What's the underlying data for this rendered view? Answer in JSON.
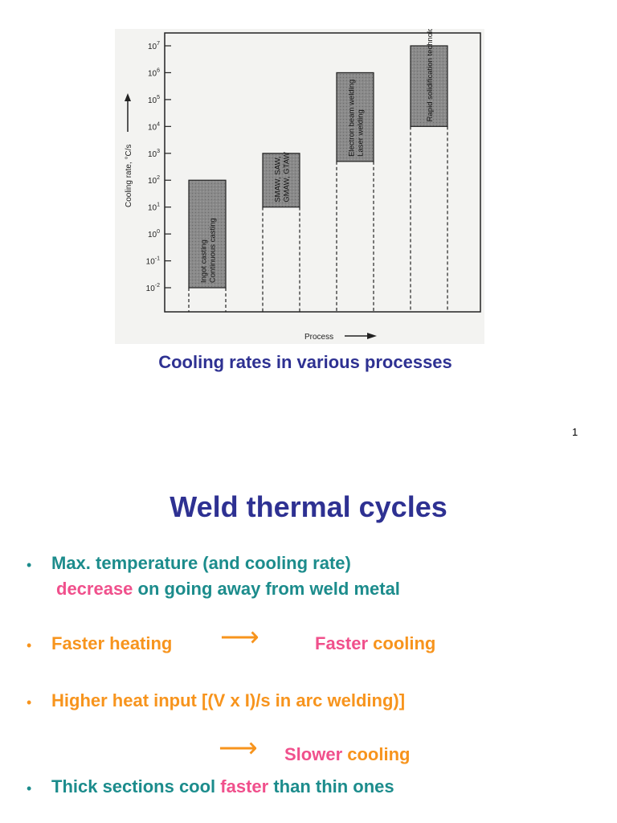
{
  "figure": {
    "ylabel": "Cooling rate, °C/s",
    "xlabel": "Process",
    "caption": "Cooling rates in various processes"
  },
  "chart_data": {
    "type": "bar",
    "title": "",
    "xlabel": "Process",
    "ylabel": "Cooling rate, °C/s",
    "y_scale": "log",
    "ylim": [
      0.01,
      10000000
    ],
    "y_ticks": [
      {
        "value": 0.01,
        "base": "10",
        "exp": "-2"
      },
      {
        "value": 0.1,
        "base": "10",
        "exp": "-1"
      },
      {
        "value": 1,
        "base": "10",
        "exp": "0"
      },
      {
        "value": 10,
        "base": "10",
        "exp": "1"
      },
      {
        "value": 100,
        "base": "10",
        "exp": "2"
      },
      {
        "value": 1000,
        "base": "10",
        "exp": "3"
      },
      {
        "value": 10000,
        "base": "10",
        "exp": "4"
      },
      {
        "value": 100000,
        "base": "10",
        "exp": "5"
      },
      {
        "value": 1000000,
        "base": "10",
        "exp": "6"
      },
      {
        "value": 10000000,
        "base": "10",
        "exp": "7"
      }
    ],
    "ranges": [
      {
        "labels": [
          "Ingot casting",
          "Continuous casting"
        ],
        "low": 0.01,
        "high": 100
      },
      {
        "labels": [
          "SMAW, SAW,",
          "GMAW, GTAW"
        ],
        "low": 10,
        "high": 1000
      },
      {
        "labels": [
          "Electron beam welding",
          "Laser welding"
        ],
        "low": 500,
        "high": 1000000
      },
      {
        "labels": [
          "Rapid solidification technology"
        ],
        "low": 10000,
        "high": 10000000
      }
    ],
    "grid": false
  },
  "page_number": "1",
  "slide": {
    "title": "Weld thermal cycles",
    "bullets": [
      {
        "line1": "Max. temperature (and cooling rate)",
        "line2_pink": "decrease",
        "line2_rest": " on going away from weld metal"
      },
      {
        "text": "Faster heating",
        "result_pink": "Faster",
        "result_rest": " cooling"
      },
      {
        "text": "Higher heat input [(V x I)/s in arc welding)]",
        "result_pink": "Slower",
        "result_rest": " cooling"
      },
      {
        "pre": "Thick sections cool ",
        "pink": "faster",
        "post": " than thin ones"
      }
    ],
    "bullet_symbol": "•",
    "arrow_symbol": "⟶"
  },
  "colors": {
    "navy": "#2e3192",
    "teal": "#1c8c8c",
    "pink": "#f0508c",
    "orange": "#f7941d"
  }
}
